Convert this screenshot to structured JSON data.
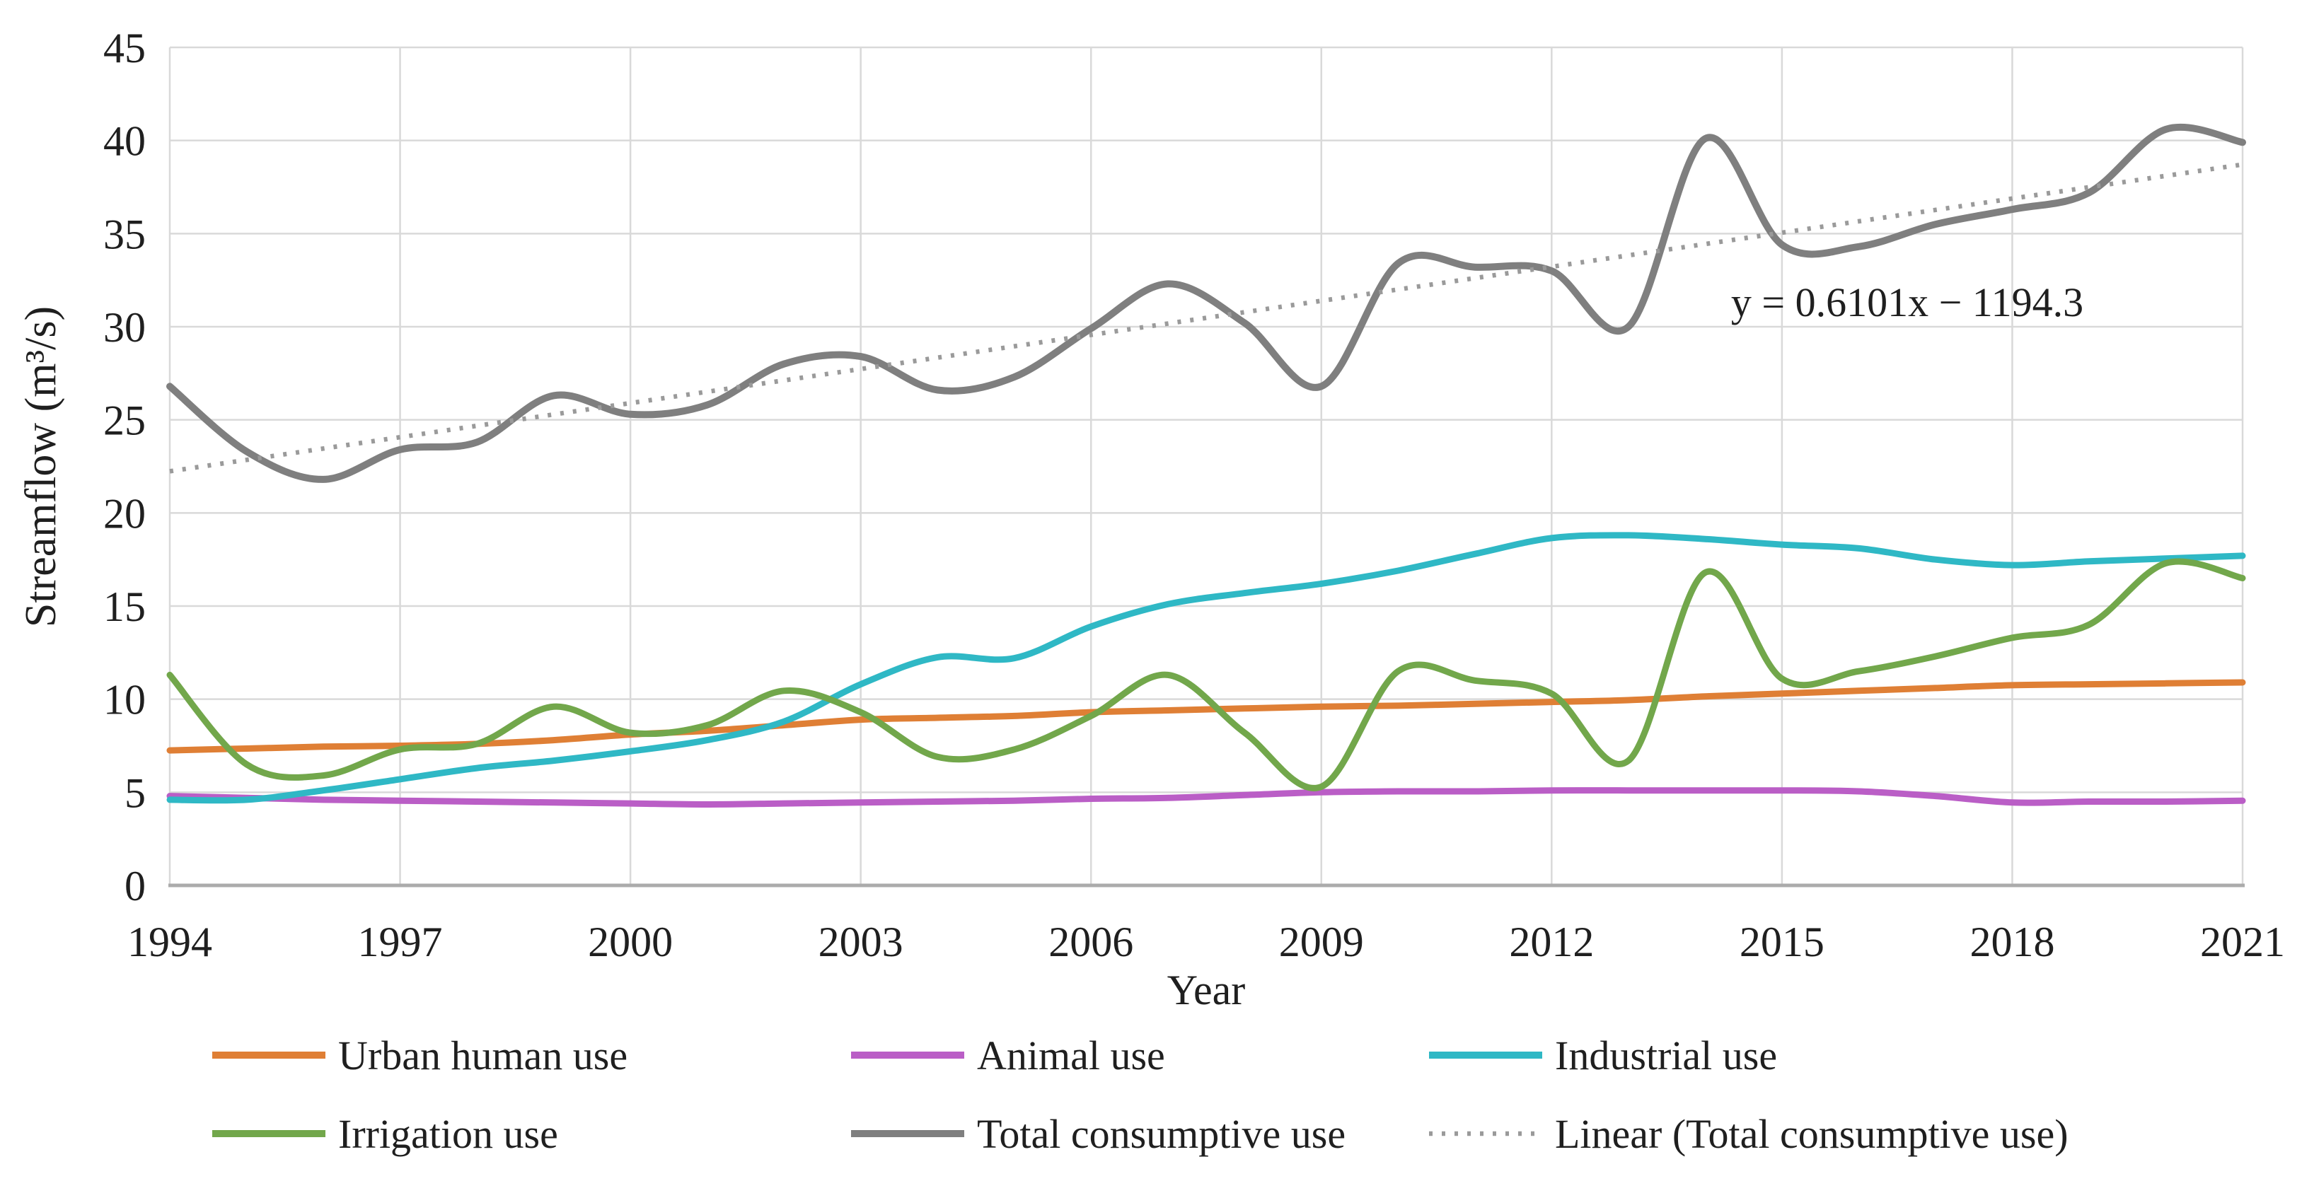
{
  "page": {
    "background": "#FFFFFF",
    "text_color": "#1F1F1F"
  },
  "chart_data": {
    "type": "line",
    "title": "",
    "xlabel": "Year",
    "ylabel": "Streamflow (m³/s)",
    "annotation": "y = 0.6101x − 1194.3",
    "grid": true,
    "legend_position": "bottom",
    "xlim": [
      1994,
      2021
    ],
    "ylim": [
      0,
      45
    ],
    "x_ticks": [
      1994,
      1997,
      2000,
      2003,
      2006,
      2009,
      2012,
      2015,
      2018,
      2021
    ],
    "y_ticks": [
      0,
      5,
      10,
      15,
      20,
      25,
      30,
      35,
      40,
      45
    ],
    "x": [
      1994,
      1995,
      1996,
      1997,
      1998,
      1999,
      2000,
      2001,
      2002,
      2003,
      2004,
      2005,
      2006,
      2007,
      2008,
      2009,
      2010,
      2011,
      2012,
      2013,
      2014,
      2015,
      2016,
      2017,
      2018,
      2019,
      2020,
      2021
    ],
    "series": [
      {
        "name": "Urban human use",
        "color": "#DF7F35",
        "style": "solid",
        "values": [
          7.25,
          7.35,
          7.45,
          7.5,
          7.6,
          7.8,
          8.1,
          8.3,
          8.6,
          8.9,
          9.0,
          9.1,
          9.3,
          9.4,
          9.5,
          9.6,
          9.65,
          9.75,
          9.85,
          9.95,
          10.15,
          10.3,
          10.45,
          10.6,
          10.75,
          10.8,
          10.85,
          10.9
        ]
      },
      {
        "name": "Animal use",
        "color": "#BA5EC6",
        "style": "solid",
        "values": [
          4.8,
          4.7,
          4.6,
          4.55,
          4.5,
          4.45,
          4.4,
          4.35,
          4.4,
          4.45,
          4.5,
          4.55,
          4.65,
          4.7,
          4.85,
          5.0,
          5.05,
          5.05,
          5.1,
          5.1,
          5.1,
          5.1,
          5.05,
          4.8,
          4.45,
          4.5,
          4.5,
          4.55
        ]
      },
      {
        "name": "Industrial use",
        "color": "#2FB8C5",
        "style": "solid",
        "values": [
          4.6,
          4.6,
          5.1,
          5.7,
          6.3,
          6.7,
          7.2,
          7.8,
          8.8,
          10.8,
          12.25,
          12.2,
          13.9,
          15.1,
          15.7,
          16.2,
          16.9,
          17.8,
          18.65,
          18.8,
          18.6,
          18.3,
          18.1,
          17.5,
          17.2,
          17.4,
          17.55,
          17.7
        ]
      },
      {
        "name": "Irrigation use",
        "color": "#72A74B",
        "style": "solid",
        "values": [
          11.3,
          6.5,
          5.9,
          7.3,
          7.6,
          9.6,
          8.2,
          8.6,
          10.45,
          9.3,
          6.9,
          7.3,
          9.1,
          11.3,
          8.2,
          5.3,
          11.5,
          11.0,
          10.3,
          6.7,
          16.8,
          11.1,
          11.5,
          12.3,
          13.3,
          14.0,
          17.3,
          16.5
        ]
      },
      {
        "name": "Total consumptive use",
        "color": "#7F7F7F",
        "style": "solid",
        "values": [
          26.8,
          23.3,
          21.8,
          23.4,
          23.8,
          26.3,
          25.3,
          25.8,
          28.0,
          28.4,
          26.6,
          27.3,
          29.9,
          32.3,
          30.2,
          26.8,
          33.4,
          33.2,
          33.0,
          30.0,
          40.1,
          34.4,
          34.3,
          35.5,
          36.3,
          37.2,
          40.6,
          39.9
        ]
      },
      {
        "name": "Linear (Total consumptive use)",
        "color": "#9A9A9A",
        "style": "dotted",
        "trend": {
          "slope": 0.6101,
          "intercept": -1194.3
        }
      }
    ],
    "legend_rows": [
      [
        "Urban human use",
        "Animal use",
        "Industrial use"
      ],
      [
        "Irrigation use",
        "Total consumptive use",
        "Linear (Total consumptive use)"
      ]
    ],
    "style": {
      "gridline_color": "#D9D9D9",
      "axis_line_color": "#ABABAB"
    }
  }
}
